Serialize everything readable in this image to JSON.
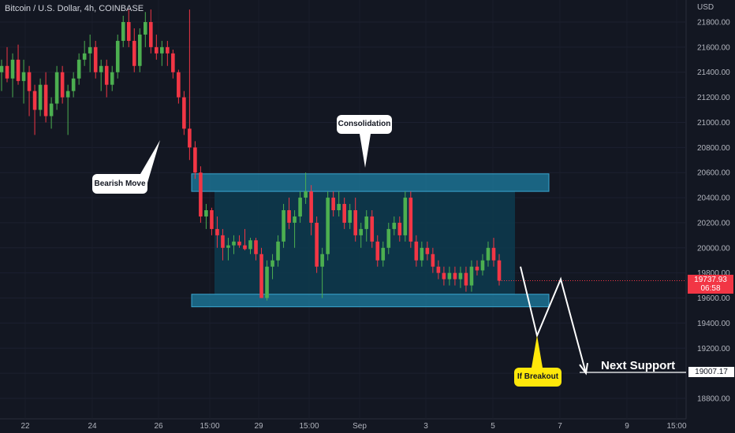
{
  "header": {
    "symbol_title": "Bitcoin / U.S. Dollar, 4h, COINBASE"
  },
  "axis": {
    "currency": "USD",
    "y_ticks": [
      "21800.00",
      "21600.00",
      "21400.00",
      "21200.00",
      "21000.00",
      "20800.00",
      "20600.00",
      "20400.00",
      "20200.00",
      "20000.00",
      "19800.00",
      "19600.00",
      "19400.00",
      "19200.00",
      "19000.00",
      "18800.00"
    ],
    "x_ticks": [
      "22",
      "24",
      "26",
      "15:00",
      "29",
      "15:00",
      "Sep",
      "3",
      "5",
      "7",
      "9",
      "15:00"
    ]
  },
  "price_tag": {
    "price": "19737.93",
    "countdown": "06:58"
  },
  "support_tag": {
    "price": "19007.17"
  },
  "annotations": {
    "consolidation": "Consolidation",
    "bearish_move": "Bearish Move",
    "if_breakout": "If Breakout",
    "next_support": "Next Support"
  },
  "colors": {
    "background": "#131722",
    "bull": "#4caf50",
    "bear": "#f23645",
    "zone": "#1e7fa3",
    "zone_dark": "#0d3b4f",
    "path": "#ffffff",
    "callout_yellow": "#ffe80a"
  },
  "chart_data": {
    "type": "candlestick",
    "ylim": [
      18700,
      21950
    ],
    "ohlc": [
      [
        21400,
        21500,
        21250,
        21450
      ],
      [
        21450,
        21600,
        21320,
        21350
      ],
      [
        21350,
        21550,
        21200,
        21500
      ],
      [
        21500,
        21620,
        21300,
        21330
      ],
      [
        21330,
        21500,
        21150,
        21400
      ],
      [
        21400,
        21450,
        21050,
        21250
      ],
      [
        21250,
        21300,
        20900,
        21100
      ],
      [
        21100,
        21350,
        21050,
        21300
      ],
      [
        21300,
        21400,
        21000,
        21050
      ],
      [
        21050,
        21200,
        20950,
        21150
      ],
      [
        21150,
        21450,
        21100,
        21400
      ],
      [
        21400,
        21450,
        21150,
        21200
      ],
      [
        21200,
        21300,
        20900,
        21250
      ],
      [
        21250,
        21400,
        21200,
        21350
      ],
      [
        21350,
        21550,
        21300,
        21500
      ],
      [
        21500,
        21650,
        21450,
        21550
      ],
      [
        21550,
        21700,
        21400,
        21600
      ],
      [
        21600,
        21650,
        21350,
        21400
      ],
      [
        21400,
        21500,
        21250,
        21450
      ],
      [
        21450,
        21500,
        21200,
        21300
      ],
      [
        21300,
        21450,
        21250,
        21400
      ],
      [
        21400,
        21700,
        21350,
        21650
      ],
      [
        21650,
        21850,
        21600,
        21800
      ],
      [
        21800,
        21900,
        21600,
        21650
      ],
      [
        21650,
        21750,
        21400,
        21450
      ],
      [
        21450,
        21750,
        21400,
        21700
      ],
      [
        21700,
        21880,
        21600,
        21800
      ],
      [
        21800,
        21900,
        21550,
        21600
      ],
      [
        21600,
        21700,
        21500,
        21550
      ],
      [
        21550,
        21650,
        21450,
        21600
      ],
      [
        21600,
        21650,
        21450,
        21550
      ],
      [
        21550,
        21580,
        21350,
        21400
      ],
      [
        21400,
        21420,
        21150,
        21200
      ],
      [
        21200,
        21250,
        20900,
        20950
      ],
      [
        20950,
        21900,
        20700,
        20800
      ],
      [
        20800,
        20850,
        20550,
        20600
      ],
      [
        20600,
        20650,
        20200,
        20250
      ],
      [
        20250,
        20350,
        20150,
        20300
      ],
      [
        20300,
        20320,
        20100,
        20150
      ],
      [
        20150,
        20250,
        20000,
        20100
      ],
      [
        20100,
        20150,
        19900,
        20000
      ],
      [
        20000,
        20080,
        19900,
        20020
      ],
      [
        20020,
        20100,
        19950,
        20050
      ],
      [
        20050,
        20100,
        20000,
        20020
      ],
      [
        20020,
        20150,
        19980,
        19990
      ],
      [
        19990,
        20080,
        19950,
        20060
      ],
      [
        20060,
        20080,
        19900,
        19950
      ],
      [
        19950,
        20000,
        19600,
        19600
      ],
      [
        19600,
        19900,
        19580,
        19850
      ],
      [
        19850,
        19950,
        19750,
        19900
      ],
      [
        19900,
        20100,
        19850,
        20050
      ],
      [
        20050,
        20350,
        20000,
        20300
      ],
      [
        20300,
        20400,
        20150,
        20200
      ],
      [
        20200,
        20300,
        20000,
        20250
      ],
      [
        20250,
        20450,
        20200,
        20400
      ],
      [
        20400,
        20600,
        20350,
        20450
      ],
      [
        20450,
        20500,
        20100,
        20200
      ],
      [
        20200,
        20250,
        19800,
        19850
      ],
      [
        19850,
        20000,
        19600,
        19950
      ],
      [
        19950,
        20450,
        19900,
        20400
      ],
      [
        20400,
        20450,
        20250,
        20300
      ],
      [
        20300,
        20450,
        20250,
        20350
      ],
      [
        20350,
        20400,
        20150,
        20200
      ],
      [
        20200,
        20350,
        20150,
        20300
      ],
      [
        20300,
        20400,
        20050,
        20100
      ],
      [
        20100,
        20200,
        20000,
        20150
      ],
      [
        20150,
        20300,
        20050,
        20250
      ],
      [
        20250,
        20300,
        20000,
        20050
      ],
      [
        20050,
        20100,
        19850,
        19900
      ],
      [
        19900,
        20050,
        19850,
        20000
      ],
      [
        20000,
        20200,
        19950,
        20150
      ],
      [
        20150,
        20250,
        20100,
        20200
      ],
      [
        20200,
        20250,
        20050,
        20100
      ],
      [
        20100,
        20450,
        20050,
        20400
      ],
      [
        20400,
        20450,
        20000,
        20050
      ],
      [
        20050,
        20100,
        19850,
        19900
      ],
      [
        19900,
        20050,
        19850,
        20000
      ],
      [
        20000,
        20050,
        19900,
        19950
      ],
      [
        19950,
        20000,
        19800,
        19850
      ],
      [
        19850,
        19900,
        19750,
        19800
      ],
      [
        19800,
        19850,
        19700,
        19750
      ],
      [
        19750,
        19850,
        19700,
        19800
      ],
      [
        19800,
        19850,
        19700,
        19750
      ],
      [
        19750,
        19850,
        19680,
        19800
      ],
      [
        19800,
        19850,
        19650,
        19700
      ],
      [
        19700,
        19900,
        19650,
        19850
      ],
      [
        19850,
        19900,
        19780,
        19820
      ],
      [
        19820,
        19950,
        19780,
        19900
      ],
      [
        19900,
        20050,
        19850,
        20000
      ],
      [
        20000,
        20080,
        19850,
        19900
      ],
      [
        19900,
        19950,
        19700,
        19737.93
      ]
    ],
    "zones": [
      {
        "y_low": 20450,
        "y_high": 20590
      },
      {
        "y_low": 19530,
        "y_high": 19630
      }
    ],
    "projection": [
      [
        19850
      ],
      [
        19300
      ],
      [
        19750
      ],
      [
        19000
      ]
    ],
    "support_level": 19007.17
  }
}
